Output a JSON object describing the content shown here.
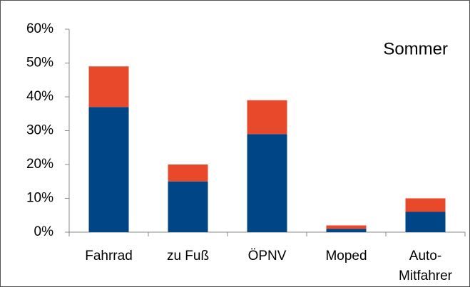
{
  "chart_data": {
    "type": "stacked_bar",
    "annotation": "Sommer",
    "categories": [
      "Fahrrad",
      "zu Fuß",
      "ÖPNV",
      "Moped",
      "Auto-\nMitfahrer"
    ],
    "series": [
      {
        "color": "#004586",
        "values": [
          37,
          15,
          29,
          1,
          6
        ]
      },
      {
        "color": "#e8492b",
        "values": [
          12,
          5,
          10,
          1,
          4
        ]
      }
    ],
    "ylim": [
      0,
      60
    ],
    "yticks": [
      {
        "value": 0,
        "label": "0%"
      },
      {
        "value": 10,
        "label": "10%"
      },
      {
        "value": 20,
        "label": "20%"
      },
      {
        "value": 30,
        "label": "30%"
      },
      {
        "value": 40,
        "label": "40%"
      },
      {
        "value": 50,
        "label": "50%"
      },
      {
        "value": 60,
        "label": "60%"
      }
    ],
    "grid": false
  }
}
